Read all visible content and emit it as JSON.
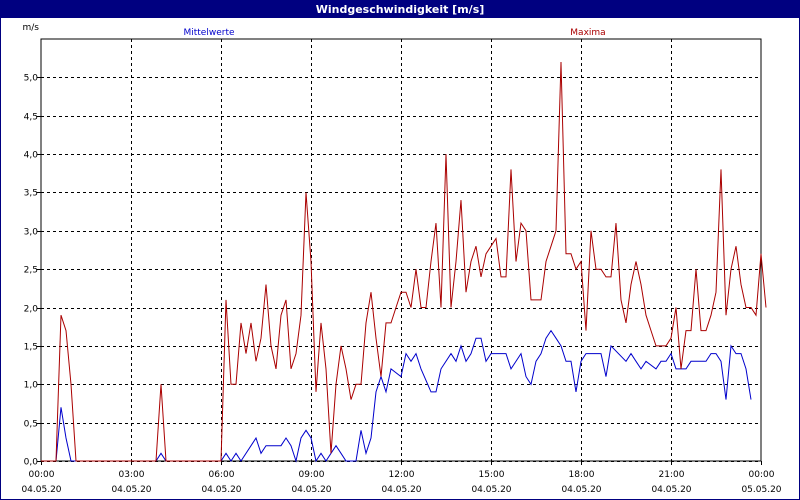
{
  "window": {
    "title": "Windgeschwindigkeit [m/s]"
  },
  "colors": {
    "title_bg": "#000080",
    "series_mean": "#0000cc",
    "series_max": "#aa0000",
    "grid": "#000000"
  },
  "chart_data": {
    "type": "line",
    "title": "Windgeschwindigkeit [m/s]",
    "ylabel": "m/s",
    "xlabel": "",
    "ylim": [
      0,
      5.5
    ],
    "xlim": [
      "2020-05-04 00:00",
      "2020-05-05 00:00"
    ],
    "grid": true,
    "y_ticks": [
      "0,0",
      "0,5",
      "1,0",
      "1,5",
      "2,0",
      "2,5",
      "3,0",
      "3,5",
      "4,0",
      "4,5",
      "5,0"
    ],
    "x_ticks": [
      {
        "time": "00:00",
        "date": "04.05.20"
      },
      {
        "time": "03:00",
        "date": "04.05.20"
      },
      {
        "time": "06:00",
        "date": "04.05.20"
      },
      {
        "time": "09:00",
        "date": "04.05.20"
      },
      {
        "time": "12:00",
        "date": "04.05.20"
      },
      {
        "time": "15:00",
        "date": "04.05.20"
      },
      {
        "time": "18:00",
        "date": "04.05.20"
      },
      {
        "time": "21:00",
        "date": "04.05.20"
      },
      {
        "time": "00:00",
        "date": "05.05.20"
      }
    ],
    "series": [
      {
        "name": "Mittelwerte",
        "color": "#0000cc",
        "points": [
          [
            "00:00",
            0
          ],
          [
            "00:30",
            0
          ],
          [
            "00:40",
            0.7
          ],
          [
            "00:50",
            0.3
          ],
          [
            "01:00",
            0
          ],
          [
            "02:00",
            0
          ],
          [
            "03:00",
            0
          ],
          [
            "03:50",
            0
          ],
          [
            "04:00",
            0.1
          ],
          [
            "04:10",
            0
          ],
          [
            "05:00",
            0
          ],
          [
            "06:00",
            0
          ],
          [
            "06:10",
            0.1
          ],
          [
            "06:20",
            0
          ],
          [
            "06:30",
            0.1
          ],
          [
            "06:40",
            0
          ],
          [
            "07:00",
            0.2
          ],
          [
            "07:10",
            0.3
          ],
          [
            "07:20",
            0.1
          ],
          [
            "07:30",
            0.2
          ],
          [
            "08:00",
            0.2
          ],
          [
            "08:10",
            0.3
          ],
          [
            "08:20",
            0.2
          ],
          [
            "08:30",
            0
          ],
          [
            "08:40",
            0.3
          ],
          [
            "08:50",
            0.4
          ],
          [
            "09:00",
            0.3
          ],
          [
            "09:10",
            0
          ],
          [
            "09:20",
            0.1
          ],
          [
            "09:30",
            0
          ],
          [
            "09:40",
            0.1
          ],
          [
            "09:50",
            0.2
          ],
          [
            "10:00",
            0.1
          ],
          [
            "10:10",
            0
          ],
          [
            "10:30",
            0
          ],
          [
            "10:40",
            0.4
          ],
          [
            "10:50",
            0.1
          ],
          [
            "11:00",
            0.3
          ],
          [
            "11:10",
            0.9
          ],
          [
            "11:20",
            1.1
          ],
          [
            "11:30",
            0.9
          ],
          [
            "11:40",
            1.2
          ],
          [
            "12:00",
            1.1
          ],
          [
            "12:10",
            1.4
          ],
          [
            "12:20",
            1.3
          ],
          [
            "12:30",
            1.4
          ],
          [
            "12:40",
            1.2
          ],
          [
            "13:00",
            0.9
          ],
          [
            "13:10",
            0.9
          ],
          [
            "13:20",
            1.2
          ],
          [
            "13:40",
            1.4
          ],
          [
            "13:50",
            1.3
          ],
          [
            "14:00",
            1.5
          ],
          [
            "14:10",
            1.3
          ],
          [
            "14:20",
            1.4
          ],
          [
            "14:30",
            1.6
          ],
          [
            "14:40",
            1.6
          ],
          [
            "14:50",
            1.3
          ],
          [
            "15:00",
            1.4
          ],
          [
            "15:30",
            1.4
          ],
          [
            "15:40",
            1.2
          ],
          [
            "16:00",
            1.4
          ],
          [
            "16:10",
            1.1
          ],
          [
            "16:20",
            1.0
          ],
          [
            "16:30",
            1.3
          ],
          [
            "16:40",
            1.4
          ],
          [
            "16:50",
            1.6
          ],
          [
            "17:00",
            1.7
          ],
          [
            "17:10",
            1.6
          ],
          [
            "17:20",
            1.5
          ],
          [
            "17:30",
            1.3
          ],
          [
            "17:40",
            1.3
          ],
          [
            "17:50",
            0.9
          ],
          [
            "18:00",
            1.3
          ],
          [
            "18:10",
            1.4
          ],
          [
            "18:30",
            1.4
          ],
          [
            "18:40",
            1.4
          ],
          [
            "18:50",
            1.1
          ],
          [
            "19:00",
            1.5
          ],
          [
            "19:30",
            1.3
          ],
          [
            "19:40",
            1.4
          ],
          [
            "19:50",
            1.3
          ],
          [
            "20:00",
            1.2
          ],
          [
            "20:10",
            1.3
          ],
          [
            "20:30",
            1.2
          ],
          [
            "20:40",
            1.3
          ],
          [
            "20:50",
            1.3
          ],
          [
            "21:00",
            1.4
          ],
          [
            "21:10",
            1.2
          ],
          [
            "21:30",
            1.2
          ],
          [
            "21:40",
            1.3
          ],
          [
            "22:00",
            1.3
          ],
          [
            "22:10",
            1.3
          ],
          [
            "22:20",
            1.4
          ],
          [
            "22:30",
            1.4
          ],
          [
            "22:40",
            1.3
          ],
          [
            "22:50",
            0.8
          ],
          [
            "23:00",
            1.5
          ],
          [
            "23:10",
            1.4
          ],
          [
            "23:20",
            1.4
          ],
          [
            "23:30",
            1.2
          ],
          [
            "23:40",
            0.8
          ]
        ]
      },
      {
        "name": "Maxima",
        "color": "#aa0000",
        "points": [
          [
            "00:00",
            0
          ],
          [
            "00:30",
            0
          ],
          [
            "00:40",
            1.9
          ],
          [
            "00:50",
            1.7
          ],
          [
            "01:00",
            1.0
          ],
          [
            "01:10",
            0
          ],
          [
            "02:00",
            0
          ],
          [
            "03:00",
            0
          ],
          [
            "03:50",
            0
          ],
          [
            "04:00",
            1.0
          ],
          [
            "04:10",
            0
          ],
          [
            "05:00",
            0
          ],
          [
            "06:00",
            0
          ],
          [
            "06:10",
            2.1
          ],
          [
            "06:20",
            1.0
          ],
          [
            "06:30",
            1.0
          ],
          [
            "06:40",
            1.8
          ],
          [
            "06:50",
            1.4
          ],
          [
            "07:00",
            1.8
          ],
          [
            "07:10",
            1.3
          ],
          [
            "07:20",
            1.6
          ],
          [
            "07:30",
            2.3
          ],
          [
            "07:40",
            1.5
          ],
          [
            "07:50",
            1.2
          ],
          [
            "08:00",
            1.9
          ],
          [
            "08:10",
            2.1
          ],
          [
            "08:20",
            1.2
          ],
          [
            "08:30",
            1.4
          ],
          [
            "08:40",
            1.9
          ],
          [
            "08:50",
            3.5
          ],
          [
            "09:00",
            2.6
          ],
          [
            "09:10",
            0.9
          ],
          [
            "09:20",
            1.8
          ],
          [
            "09:30",
            1.2
          ],
          [
            "09:40",
            0.1
          ],
          [
            "09:50",
            1.0
          ],
          [
            "10:00",
            1.5
          ],
          [
            "10:10",
            1.2
          ],
          [
            "10:20",
            0.8
          ],
          [
            "10:30",
            1.0
          ],
          [
            "10:40",
            1.0
          ],
          [
            "10:50",
            1.8
          ],
          [
            "11:00",
            2.2
          ],
          [
            "11:10",
            1.6
          ],
          [
            "11:20",
            1.1
          ],
          [
            "11:30",
            1.8
          ],
          [
            "11:40",
            1.8
          ],
          [
            "11:50",
            2.0
          ],
          [
            "12:00",
            2.2
          ],
          [
            "12:10",
            2.2
          ],
          [
            "12:20",
            2.0
          ],
          [
            "12:30",
            2.5
          ],
          [
            "12:40",
            2.0
          ],
          [
            "12:50",
            2.0
          ],
          [
            "13:00",
            2.6
          ],
          [
            "13:10",
            3.1
          ],
          [
            "13:20",
            2.0
          ],
          [
            "13:30",
            4.0
          ],
          [
            "13:40",
            2.0
          ],
          [
            "13:50",
            2.6
          ],
          [
            "14:00",
            3.4
          ],
          [
            "14:10",
            2.2
          ],
          [
            "14:20",
            2.6
          ],
          [
            "14:30",
            2.8
          ],
          [
            "14:40",
            2.4
          ],
          [
            "14:50",
            2.7
          ],
          [
            "15:00",
            2.8
          ],
          [
            "15:10",
            2.9
          ],
          [
            "15:20",
            2.4
          ],
          [
            "15:30",
            2.4
          ],
          [
            "15:40",
            3.8
          ],
          [
            "15:50",
            2.6
          ],
          [
            "16:00",
            3.1
          ],
          [
            "16:10",
            3.0
          ],
          [
            "16:20",
            2.1
          ],
          [
            "16:30",
            2.1
          ],
          [
            "16:40",
            2.1
          ],
          [
            "16:50",
            2.6
          ],
          [
            "17:00",
            2.8
          ],
          [
            "17:10",
            3.0
          ],
          [
            "17:20",
            5.2
          ],
          [
            "17:30",
            2.7
          ],
          [
            "17:40",
            2.7
          ],
          [
            "17:50",
            2.5
          ],
          [
            "18:00",
            2.6
          ],
          [
            "18:10",
            1.7
          ],
          [
            "18:20",
            3.0
          ],
          [
            "18:30",
            2.5
          ],
          [
            "18:40",
            2.5
          ],
          [
            "18:50",
            2.4
          ],
          [
            "19:00",
            2.4
          ],
          [
            "19:10",
            3.1
          ],
          [
            "19:20",
            2.1
          ],
          [
            "19:30",
            1.8
          ],
          [
            "19:40",
            2.3
          ],
          [
            "19:50",
            2.6
          ],
          [
            "20:00",
            2.3
          ],
          [
            "20:10",
            1.9
          ],
          [
            "20:20",
            1.7
          ],
          [
            "20:30",
            1.5
          ],
          [
            "20:40",
            1.5
          ],
          [
            "20:50",
            1.5
          ],
          [
            "21:00",
            1.6
          ],
          [
            "21:10",
            2.0
          ],
          [
            "21:20",
            1.2
          ],
          [
            "21:30",
            1.7
          ],
          [
            "21:40",
            1.7
          ],
          [
            "21:50",
            2.5
          ],
          [
            "22:00",
            1.7
          ],
          [
            "22:10",
            1.7
          ],
          [
            "22:20",
            1.9
          ],
          [
            "22:30",
            2.2
          ],
          [
            "22:40",
            3.8
          ],
          [
            "22:50",
            1.9
          ],
          [
            "23:00",
            2.5
          ],
          [
            "23:10",
            2.8
          ],
          [
            "23:20",
            2.3
          ],
          [
            "23:30",
            2.0
          ],
          [
            "23:40",
            2.0
          ],
          [
            "23:50",
            1.9
          ],
          [
            "24:00",
            2.7
          ],
          [
            "24:10",
            2.0
          ]
        ]
      }
    ]
  }
}
